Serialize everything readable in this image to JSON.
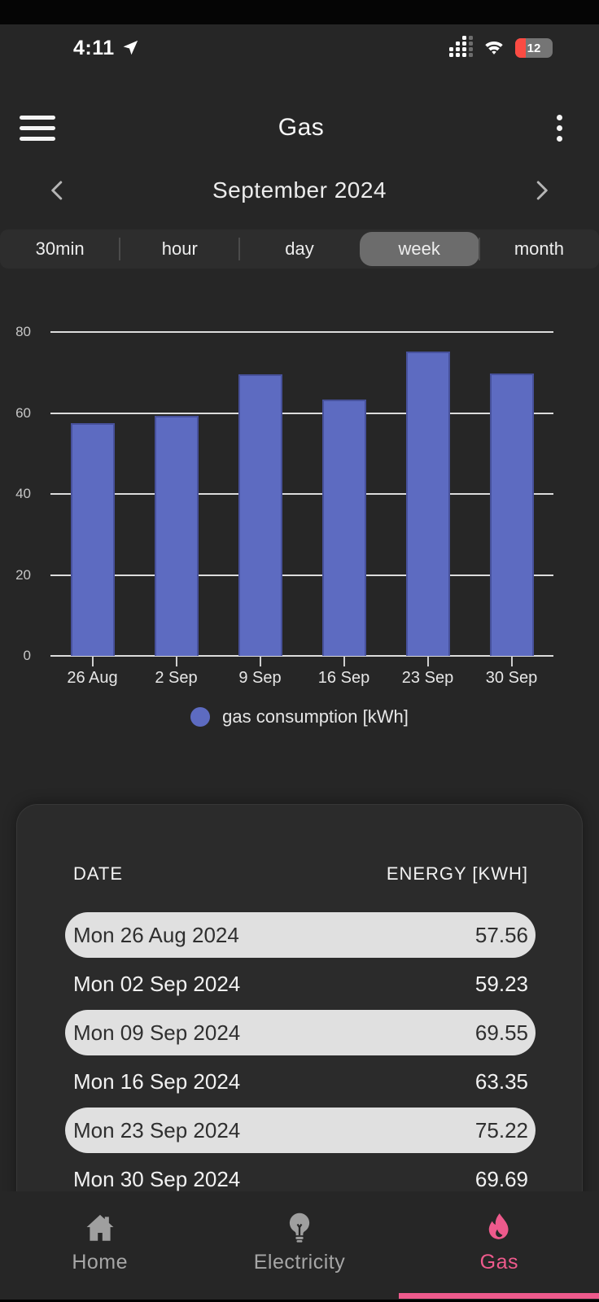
{
  "status_bar": {
    "time": "4:11",
    "battery_percent": "12"
  },
  "header": {
    "title": "Gas"
  },
  "period_nav": {
    "label": "September 2024"
  },
  "view_tabs": {
    "options": [
      "30min",
      "hour",
      "day",
      "week",
      "month"
    ],
    "selected": "week"
  },
  "chart_data": {
    "type": "bar",
    "categories": [
      "26 Aug",
      "2 Sep",
      "9 Sep",
      "16 Sep",
      "23 Sep",
      "30 Sep"
    ],
    "values": [
      57.56,
      59.23,
      69.55,
      63.35,
      75.22,
      69.69
    ],
    "series_label": "gas consumption [kWh]",
    "ylim": [
      0,
      80
    ],
    "yticks": [
      0,
      20,
      40,
      60,
      80
    ],
    "grid": true,
    "legend_position": "bottom"
  },
  "table": {
    "headers": [
      "DATE",
      "ENERGY [KWH]"
    ],
    "rows": [
      {
        "date": "Mon 26 Aug 2024",
        "energy": "57.56"
      },
      {
        "date": "Mon 02 Sep 2024",
        "energy": "59.23"
      },
      {
        "date": "Mon 09 Sep 2024",
        "energy": "69.55"
      },
      {
        "date": "Mon 16 Sep 2024",
        "energy": "63.35"
      },
      {
        "date": "Mon 23 Sep 2024",
        "energy": "75.22"
      },
      {
        "date": "Mon 30 Sep 2024",
        "energy": "69.69"
      }
    ]
  },
  "bottom_nav": {
    "items": [
      {
        "label": "Home",
        "icon": "home-icon",
        "active": false
      },
      {
        "label": "Electricity",
        "icon": "lightbulb-icon",
        "active": false
      },
      {
        "label": "Gas",
        "icon": "flame-icon",
        "active": true
      }
    ]
  },
  "colors": {
    "bar_blue": "#5d6bc1",
    "accent_pink": "#ee5a8c",
    "row_stripe": "#e0e0e0",
    "battery_red": "#fb4b43"
  }
}
